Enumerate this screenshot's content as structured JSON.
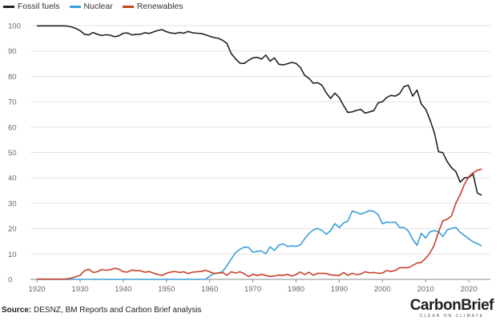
{
  "chart_data": {
    "type": "line",
    "title": "",
    "xlabel": "",
    "ylabel": "",
    "xlim": [
      1920,
      2023
    ],
    "ylim": [
      0,
      100
    ],
    "yticks": [
      0,
      10,
      20,
      30,
      40,
      50,
      60,
      70,
      80,
      90,
      100
    ],
    "xticks": [
      1920,
      1930,
      1940,
      1950,
      1960,
      1970,
      1980,
      1990,
      2000,
      2010,
      2020
    ],
    "legend": "top-left",
    "grid": true,
    "x": [
      1920,
      1921,
      1922,
      1923,
      1924,
      1925,
      1926,
      1927,
      1928,
      1929,
      1930,
      1931,
      1932,
      1933,
      1934,
      1935,
      1936,
      1937,
      1938,
      1939,
      1940,
      1941,
      1942,
      1943,
      1944,
      1945,
      1946,
      1947,
      1948,
      1949,
      1950,
      1951,
      1952,
      1953,
      1954,
      1955,
      1956,
      1957,
      1958,
      1959,
      1960,
      1961,
      1962,
      1963,
      1964,
      1965,
      1966,
      1967,
      1968,
      1969,
      1970,
      1971,
      1972,
      1973,
      1974,
      1975,
      1976,
      1977,
      1978,
      1979,
      1980,
      1981,
      1982,
      1983,
      1984,
      1985,
      1986,
      1987,
      1988,
      1989,
      1990,
      1991,
      1992,
      1993,
      1994,
      1995,
      1996,
      1997,
      1998,
      1999,
      2000,
      2001,
      2002,
      2003,
      2004,
      2005,
      2006,
      2007,
      2008,
      2009,
      2010,
      2011,
      2012,
      2013,
      2014,
      2015,
      2016,
      2017,
      2018,
      2019,
      2020,
      2021,
      2022,
      2023
    ],
    "series": [
      {
        "name": "Fossil fuels",
        "color": "#222222",
        "values": [
          99.9,
          99.9,
          99.9,
          99.9,
          99.9,
          99.9,
          99.9,
          99.8,
          99.5,
          98.9,
          98.0,
          96.6,
          96.3,
          97.3,
          96.6,
          96.1,
          96.4,
          96.2,
          95.6,
          96.0,
          97.0,
          97.1,
          96.3,
          96.6,
          96.6,
          97.2,
          96.9,
          97.5,
          98.1,
          98.4,
          97.6,
          97.1,
          96.9,
          97.3,
          97.0,
          97.7,
          97.2,
          97.0,
          96.9,
          96.4,
          95.8,
          95.3,
          95.0,
          94.2,
          93.0,
          89.0,
          86.9,
          85.2,
          85.1,
          86.3,
          87.3,
          87.5,
          86.8,
          88.4,
          86.0,
          87.3,
          84.8,
          84.5,
          85.0,
          85.5,
          85.1,
          83.5,
          80.4,
          79.2,
          77.3,
          77.5,
          76.5,
          73.5,
          71.3,
          73.4,
          71.6,
          68.5,
          65.8,
          66.0,
          66.6,
          67.0,
          65.5,
          66.0,
          66.5,
          69.6,
          70.0,
          71.7,
          72.5,
          72.2,
          73.2,
          76.0,
          76.5,
          72.2,
          74.6,
          69.1,
          67.1,
          63.0,
          58.0,
          50.3,
          49.9,
          46.4,
          44.0,
          42.5,
          38.3,
          40.0,
          40.2,
          41.5,
          34.0,
          33.2
        ]
      },
      {
        "name": "Nuclear",
        "color": "#3a9fd8",
        "values": [
          0,
          0,
          0,
          0,
          0,
          0,
          0,
          0,
          0,
          0,
          0,
          0,
          0,
          0,
          0,
          0,
          0,
          0,
          0,
          0,
          0,
          0,
          0,
          0,
          0,
          0,
          0,
          0,
          0,
          0,
          0,
          0,
          0,
          0,
          0,
          0,
          0,
          0,
          0,
          0,
          1.2,
          2.4,
          2.5,
          3.1,
          5.4,
          8.0,
          10.6,
          11.8,
          12.7,
          12.6,
          10.7,
          11.0,
          11.2,
          10.1,
          12.8,
          11.4,
          13.5,
          14.0,
          13.0,
          13.2,
          13.0,
          13.6,
          16.0,
          18.0,
          19.5,
          20.1,
          19.3,
          17.8,
          19.2,
          22.0,
          20.4,
          22.2,
          23.0,
          26.9,
          26.4,
          25.7,
          26.3,
          27.1,
          26.8,
          25.5,
          21.9,
          22.6,
          22.4,
          22.6,
          20.4,
          20.4,
          19.1,
          15.8,
          13.4,
          18.2,
          16.3,
          18.7,
          19.2,
          18.8,
          16.9,
          19.5,
          20.1,
          20.5,
          18.5,
          17.3,
          16.0,
          14.8,
          14.1,
          13.2
        ]
      },
      {
        "name": "Renewables",
        "color": "#c8412b",
        "values": [
          0.1,
          0.1,
          0.1,
          0.1,
          0.1,
          0.1,
          0.1,
          0.2,
          0.5,
          1.0,
          1.6,
          3.4,
          4.0,
          2.7,
          3.0,
          3.9,
          3.6,
          3.8,
          4.4,
          4.0,
          3.0,
          2.9,
          3.7,
          3.4,
          3.4,
          2.8,
          3.1,
          2.5,
          1.9,
          1.6,
          2.4,
          2.9,
          3.1,
          2.7,
          3.0,
          2.3,
          2.8,
          3.0,
          3.1,
          3.6,
          3.0,
          2.3,
          2.5,
          2.7,
          1.6,
          3.0,
          2.5,
          3.0,
          2.2,
          1.1,
          2.0,
          1.5,
          2.0,
          1.5,
          1.2,
          1.3,
          1.7,
          1.5,
          2.0,
          1.3,
          1.9,
          2.9,
          1.9,
          2.8,
          1.6,
          2.4,
          2.4,
          2.3,
          1.8,
          1.6,
          1.5,
          2.7,
          1.6,
          2.4,
          1.9,
          2.1,
          3.0,
          2.6,
          2.7,
          2.4,
          2.5,
          3.5,
          3.1,
          3.5,
          4.6,
          4.6,
          4.6,
          5.5,
          6.4,
          6.7,
          8.3,
          10.3,
          13.5,
          18.7,
          23.1,
          23.7,
          25.0,
          30.0,
          33.3,
          37.5,
          40.5,
          42.0,
          43.0,
          43.5
        ]
      }
    ]
  },
  "legend": {
    "fossil": "Fossil fuels",
    "nuclear": "Nuclear",
    "renewables": "Renewables"
  },
  "source": {
    "label": "Source:",
    "text": "DESNZ, BM Reports and Carbon Brief analysis"
  },
  "logo": {
    "name": "CarbonBrief",
    "tagline": "CLEAR ON CLIMATE"
  }
}
